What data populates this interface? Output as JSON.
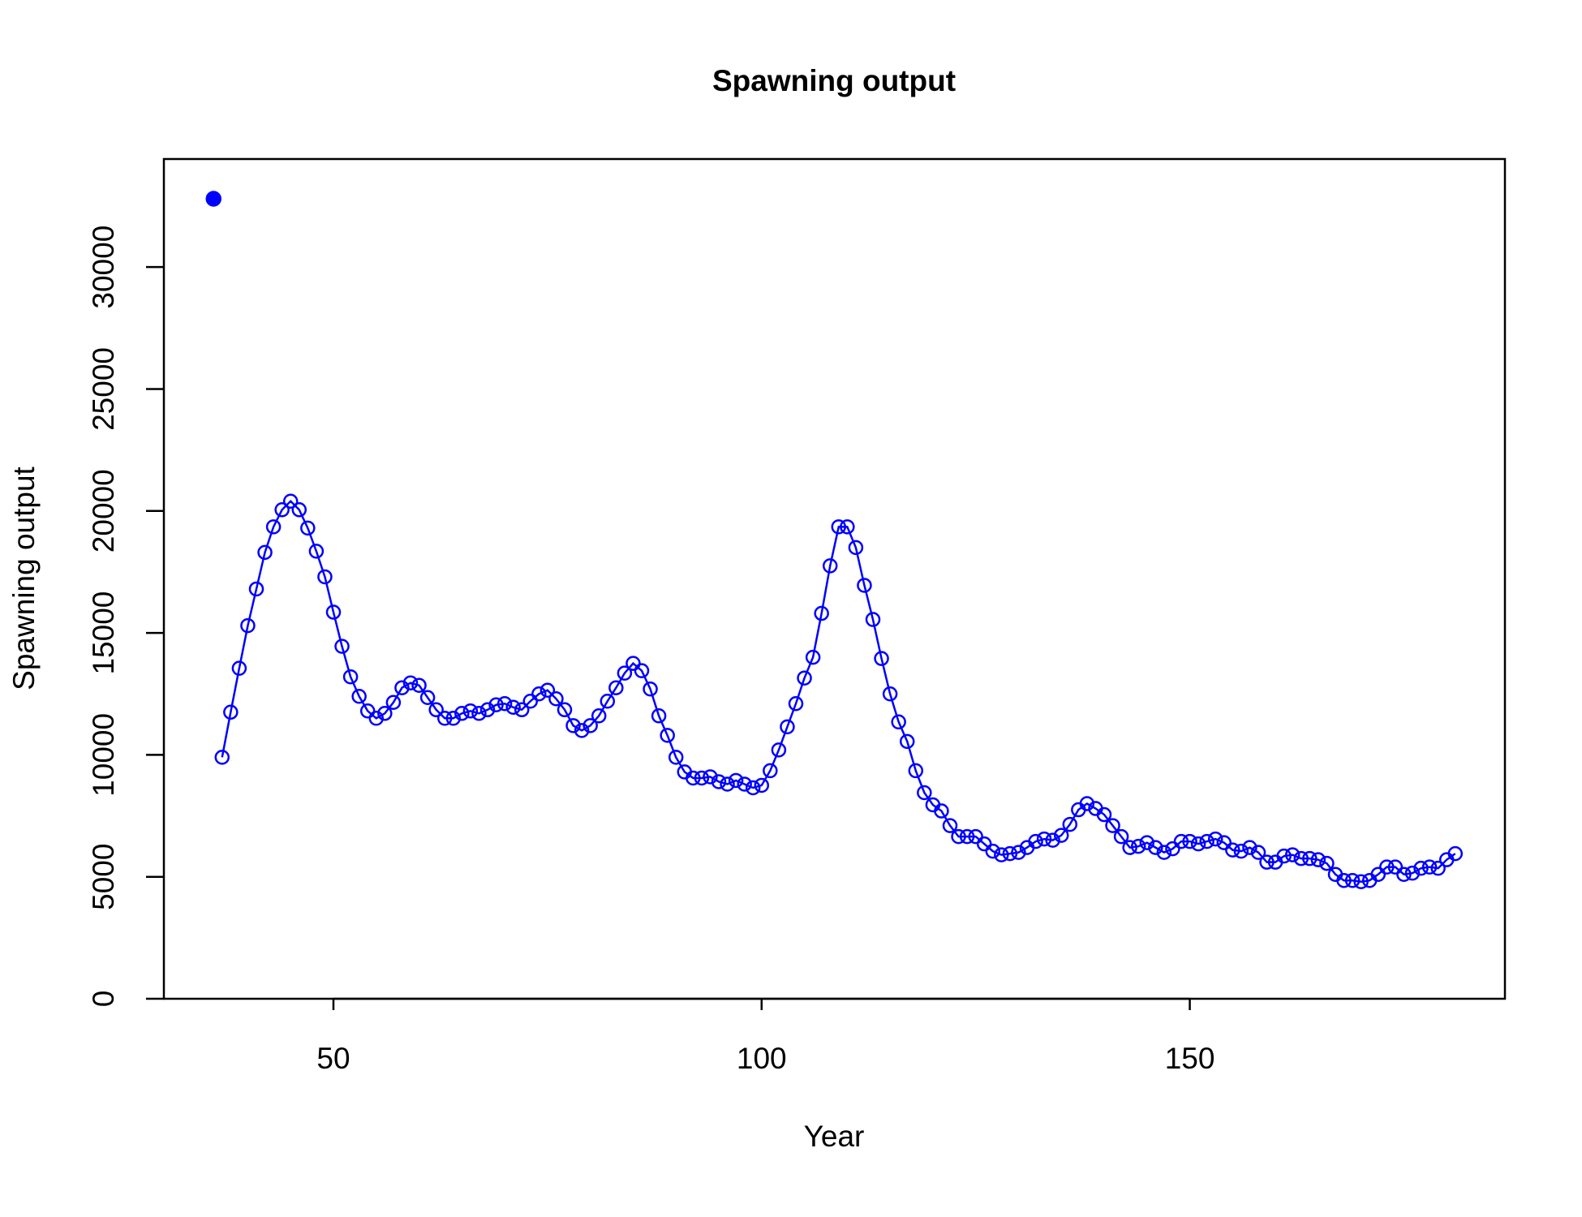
{
  "chart_data": {
    "type": "line",
    "title": "Spawning output",
    "xlabel": "Year",
    "ylabel": "Spawning output",
    "xlim": [
      30.2,
      186.8
    ],
    "ylim": [
      0,
      34430
    ],
    "xticks": [
      50,
      100,
      150
    ],
    "yticks": [
      0,
      5000,
      10000,
      15000,
      20000,
      25000,
      30000
    ],
    "grid": false,
    "series": [
      {
        "color": "#0000ff",
        "marker": "filled",
        "line": false,
        "x": [
          36
        ],
        "values": [
          32800
        ]
      },
      {
        "color": "#0000ff",
        "marker": "open",
        "line": true,
        "x": [
          37,
          38,
          39,
          40,
          41,
          42,
          43,
          44,
          45,
          46,
          47,
          48,
          49,
          50,
          51,
          52,
          53,
          54,
          55,
          56,
          57,
          58,
          59,
          60,
          61,
          62,
          63,
          64,
          65,
          66,
          67,
          68,
          69,
          70,
          71,
          72,
          73,
          74,
          75,
          76,
          77,
          78,
          79,
          80,
          81,
          82,
          83,
          84,
          85,
          86,
          87,
          88,
          89,
          90,
          91,
          92,
          93,
          94,
          95,
          96,
          97,
          98,
          99,
          100,
          101,
          102,
          103,
          104,
          105,
          106,
          107,
          108,
          109,
          110,
          111,
          112,
          113,
          114,
          115,
          116,
          117,
          118,
          119,
          120,
          121,
          122,
          123,
          124,
          125,
          126,
          127,
          128,
          129,
          130,
          131,
          132,
          133,
          134,
          135,
          136,
          137,
          138,
          139,
          140,
          141,
          142,
          143,
          144,
          145,
          146,
          147,
          148,
          149,
          150,
          151,
          152,
          153,
          154,
          155,
          156,
          157,
          158,
          159,
          160,
          161,
          162,
          163,
          164,
          165,
          166,
          167,
          168,
          169,
          170,
          171,
          172,
          173,
          174,
          175,
          176,
          177,
          178,
          179,
          180,
          181
        ],
        "values": [
          9900,
          11750,
          13550,
          15300,
          16800,
          18300,
          19350,
          20050,
          20400,
          20050,
          19300,
          18350,
          17300,
          15850,
          14450,
          13200,
          12400,
          11800,
          11500,
          11700,
          12150,
          12750,
          12950,
          12850,
          12350,
          11850,
          11500,
          11500,
          11700,
          11800,
          11700,
          11850,
          12050,
          12100,
          11950,
          11850,
          12200,
          12500,
          12650,
          12300,
          11850,
          11200,
          11000,
          11200,
          11600,
          12200,
          12750,
          13350,
          13750,
          13450,
          12700,
          11600,
          10800,
          9900,
          9300,
          9050,
          9050,
          9100,
          8900,
          8800,
          8950,
          8800,
          8650,
          8750,
          9350,
          10200,
          11150,
          12100,
          13150,
          14000,
          15800,
          17750,
          19350,
          19350,
          18500,
          16950,
          15550,
          13950,
          12500,
          11350,
          10550,
          9350,
          8450,
          7950,
          7700,
          7100,
          6650,
          6650,
          6650,
          6350,
          6050,
          5900,
          5950,
          6000,
          6200,
          6450,
          6550,
          6500,
          6700,
          7150,
          7750,
          8000,
          7800,
          7550,
          7100,
          6650,
          6200,
          6250,
          6400,
          6200,
          6000,
          6150,
          6450,
          6450,
          6350,
          6450,
          6550,
          6400,
          6100,
          6050,
          6200,
          6000,
          5600,
          5600,
          5850,
          5900,
          5750,
          5750,
          5700,
          5550,
          5100,
          4850,
          4850,
          4800,
          4850,
          5100,
          5400,
          5400,
          5100,
          5150,
          5350,
          5400,
          5350,
          5700,
          5950
        ]
      }
    ]
  }
}
